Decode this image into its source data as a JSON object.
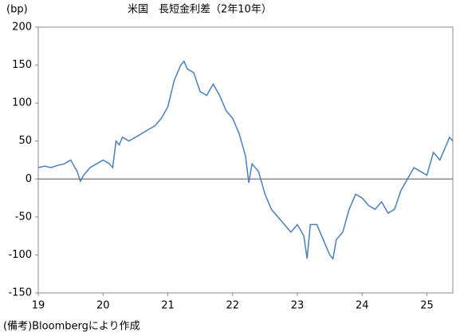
{
  "chart_data": {
    "type": "line",
    "title": "米国　長短金利差（2年10年）",
    "y_unit": "(bp)",
    "note": "(備考)Bloombergにより作成",
    "x": [
      19.0,
      19.1,
      19.2,
      19.3,
      19.4,
      19.5,
      19.6,
      19.65,
      19.7,
      19.8,
      19.9,
      20.0,
      20.1,
      20.15,
      20.2,
      20.25,
      20.3,
      20.4,
      20.5,
      20.6,
      20.7,
      20.8,
      20.9,
      21.0,
      21.1,
      21.2,
      21.25,
      21.3,
      21.4,
      21.5,
      21.6,
      21.7,
      21.8,
      21.9,
      22.0,
      22.1,
      22.2,
      22.25,
      22.3,
      22.4,
      22.5,
      22.6,
      22.7,
      22.8,
      22.9,
      23.0,
      23.1,
      23.15,
      23.2,
      23.3,
      23.4,
      23.5,
      23.55,
      23.6,
      23.7,
      23.8,
      23.9,
      24.0,
      24.1,
      24.2,
      24.3,
      24.4,
      24.5,
      24.6,
      24.7,
      24.8,
      24.9,
      25.0,
      25.1,
      25.2,
      25.3,
      25.35,
      25.4
    ],
    "series": [
      {
        "name": "長短金利差",
        "color": "#4a7ebb",
        "values": [
          15,
          17,
          15,
          18,
          20,
          25,
          10,
          -3,
          5,
          15,
          20,
          25,
          20,
          15,
          50,
          45,
          55,
          50,
          55,
          60,
          65,
          70,
          80,
          95,
          130,
          150,
          155,
          145,
          140,
          115,
          110,
          125,
          110,
          90,
          80,
          60,
          30,
          -5,
          20,
          10,
          -20,
          -40,
          -50,
          -60,
          -70,
          -60,
          -75,
          -105,
          -60,
          -60,
          -80,
          -100,
          -105,
          -80,
          -70,
          -40,
          -20,
          -25,
          -35,
          -40,
          -30,
          -45,
          -40,
          -15,
          0,
          15,
          10,
          5,
          35,
          25,
          45,
          55,
          50
        ]
      }
    ],
    "xlim": [
      19,
      25.4
    ],
    "xticks": [
      19,
      20,
      21,
      22,
      23,
      24,
      25
    ],
    "ylim": [
      -150,
      200
    ],
    "yticks": [
      -150,
      -100,
      -50,
      0,
      50,
      100,
      150,
      200
    ]
  }
}
